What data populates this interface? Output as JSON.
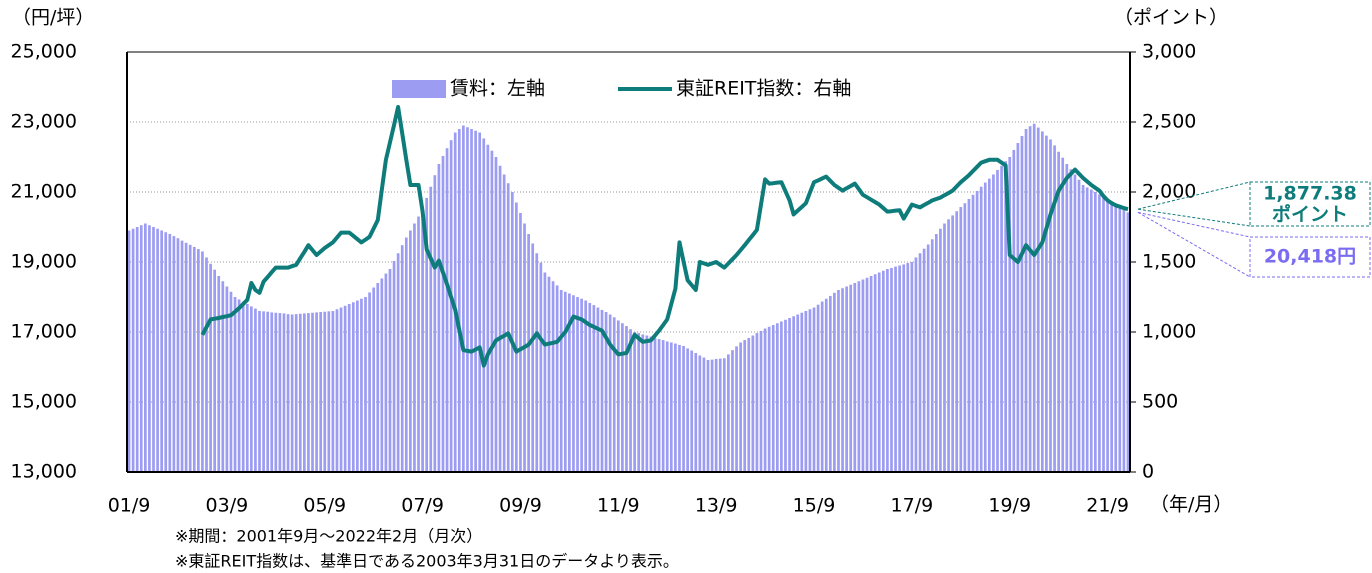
{
  "chart_data": {
    "type": "bar_line",
    "y_label": "（円/坪）",
    "y2_label": "（ポイント）",
    "x_label": "（年/月）",
    "notes": [
      "※期間：2001年9月～2022年2月（月次）",
      "※東証REIT指数は、基準日である2003年3月31日のデータより表示。"
    ],
    "ylim": [
      13000,
      25000
    ],
    "yticks": [
      {
        "value": 13000,
        "label": "13,000"
      },
      {
        "value": 15000,
        "label": "15,000"
      },
      {
        "value": 17000,
        "label": "17,000"
      },
      {
        "value": 19000,
        "label": "19,000"
      },
      {
        "value": 21000,
        "label": "21,000"
      },
      {
        "value": 23000,
        "label": "23,000"
      },
      {
        "value": 25000,
        "label": "25,000"
      }
    ],
    "y2lim": [
      0,
      3000
    ],
    "y2ticks": [
      0,
      500,
      {
        "value": 1000,
        "label": "1,000"
      },
      {
        "value": 1500,
        "label": "1,500"
      },
      {
        "value": 2000,
        "label": "2,000"
      },
      {
        "value": 2500,
        "label": "2,500"
      },
      {
        "value": 3000,
        "label": "3,000"
      }
    ],
    "grid": true,
    "legend": "top",
    "categories": [
      "01/9",
      null,
      null,
      null,
      null,
      null,
      null,
      null,
      null,
      null,
      null,
      null,
      null,
      null,
      null,
      null,
      null,
      null,
      null,
      null,
      null,
      null,
      null,
      null,
      "03/9",
      null,
      null,
      null,
      null,
      null,
      null,
      null,
      null,
      null,
      null,
      null,
      null,
      null,
      null,
      null,
      null,
      null,
      null,
      null,
      null,
      null,
      null,
      null,
      "05/9",
      null,
      null,
      null,
      null,
      null,
      null,
      null,
      null,
      null,
      null,
      null,
      null,
      null,
      null,
      null,
      null,
      null,
      null,
      null,
      null,
      null,
      null,
      null,
      "07/9",
      null,
      null,
      null,
      null,
      null,
      null,
      null,
      null,
      null,
      null,
      null,
      null,
      null,
      null,
      null,
      null,
      null,
      null,
      null,
      null,
      null,
      null,
      null,
      "09/9",
      null,
      null,
      null,
      null,
      null,
      null,
      null,
      null,
      null,
      null,
      null,
      null,
      null,
      null,
      null,
      null,
      null,
      null,
      null,
      null,
      null,
      null,
      null,
      "11/9",
      null,
      null,
      null,
      null,
      null,
      null,
      null,
      null,
      null,
      null,
      null,
      null,
      null,
      null,
      null,
      null,
      null,
      null,
      null,
      null,
      null,
      null,
      null,
      "13/9",
      null,
      null,
      null,
      null,
      null,
      null,
      null,
      null,
      null,
      null,
      null,
      null,
      null,
      null,
      null,
      null,
      null,
      null,
      null,
      null,
      null,
      null,
      null,
      "15/9",
      null,
      null,
      null,
      null,
      null,
      null,
      null,
      null,
      null,
      null,
      null,
      null,
      null,
      null,
      null,
      null,
      null,
      null,
      null,
      null,
      null,
      null,
      null,
      "17/9",
      null,
      null,
      null,
      null,
      null,
      null,
      null,
      null,
      null,
      null,
      null,
      null,
      null,
      null,
      null,
      null,
      null,
      null,
      null,
      null,
      null,
      null,
      null,
      "19/9",
      null,
      null,
      null,
      null,
      null,
      null,
      null,
      null,
      null,
      null,
      null,
      null,
      null,
      null,
      null,
      null,
      null,
      null,
      null,
      null,
      null,
      null,
      null,
      "21/9",
      null,
      null,
      null,
      null,
      null
    ],
    "series": [
      {
        "name": "賃料：左軸",
        "type": "bar",
        "color": "#9c9cf2",
        "values": [
          19900,
          19950,
          20000,
          20050,
          20100,
          20050,
          20000,
          19950,
          19900,
          19850,
          19800,
          19740,
          19680,
          19610,
          19550,
          19490,
          19430,
          19370,
          19300,
          19130,
          18950,
          18780,
          18600,
          18450,
          18300,
          18150,
          18000,
          17930,
          17870,
          17800,
          17730,
          17670,
          17600,
          17590,
          17580,
          17560,
          17550,
          17540,
          17530,
          17510,
          17500,
          17510,
          17520,
          17530,
          17540,
          17550,
          17560,
          17570,
          17580,
          17590,
          17600,
          17650,
          17700,
          17750,
          17800,
          17850,
          17900,
          17950,
          18000,
          18130,
          18270,
          18400,
          18530,
          18670,
          18800,
          19030,
          19250,
          19480,
          19700,
          19900,
          20100,
          20300,
          20500,
          20830,
          21150,
          21480,
          21800,
          22030,
          22250,
          22480,
          22700,
          22800,
          22900,
          22850,
          22800,
          22750,
          22700,
          22530,
          22350,
          22180,
          22000,
          21750,
          21500,
          21250,
          21000,
          20700,
          20400,
          20100,
          19800,
          19530,
          19250,
          18980,
          18700,
          18580,
          18450,
          18330,
          18200,
          18150,
          18100,
          18050,
          18000,
          17950,
          17900,
          17830,
          17770,
          17700,
          17630,
          17570,
          17500,
          17420,
          17330,
          17250,
          17170,
          17080,
          17000,
          16970,
          16930,
          16900,
          16870,
          16830,
          16800,
          16770,
          16730,
          16700,
          16670,
          16630,
          16600,
          16530,
          16470,
          16400,
          16330,
          16270,
          16200,
          16210,
          16230,
          16240,
          16250,
          16360,
          16480,
          16590,
          16700,
          16770,
          16830,
          16900,
          16970,
          17030,
          17100,
          17150,
          17200,
          17250,
          17300,
          17350,
          17400,
          17450,
          17500,
          17550,
          17600,
          17650,
          17700,
          17780,
          17870,
          17950,
          18030,
          18120,
          18200,
          18250,
          18300,
          18350,
          18400,
          18450,
          18500,
          18550,
          18600,
          18650,
          18700,
          18750,
          18800,
          18830,
          18870,
          18900,
          18930,
          18970,
          19000,
          19130,
          19250,
          19380,
          19500,
          19650,
          19800,
          19950,
          20100,
          20220,
          20330,
          20450,
          20570,
          20680,
          20800,
          20920,
          21030,
          21150,
          21270,
          21380,
          21500,
          21630,
          21750,
          21880,
          22000,
          22200,
          22400,
          22600,
          22800,
          22880,
          22950,
          22840,
          22730,
          22610,
          22500,
          22330,
          22150,
          21980,
          21800,
          21650,
          21500,
          21350,
          21200,
          21130,
          21070,
          21000,
          20930,
          20870,
          20800,
          20720,
          20640,
          20570,
          20490,
          20418
        ]
      },
      {
        "name": "東証REIT指数：右軸",
        "type": "line",
        "axis": "y2",
        "color": "#0e7c7b",
        "values": [
          null,
          null,
          null,
          null,
          null,
          null,
          null,
          null,
          null,
          null,
          null,
          null,
          null,
          null,
          null,
          null,
          null,
          null,
          980,
          1035,
          1090,
          1095,
          1100,
          1107,
          1113,
          1120,
          1145,
          1170,
          1200,
          1230,
          1350,
          1300,
          1280,
          1360,
          1393,
          1427,
          1460,
          1460,
          1460,
          1460,
          1470,
          1480,
          1527,
          1573,
          1620,
          1585,
          1550,
          1575,
          1600,
          1620,
          1640,
          1675,
          1710,
          1710,
          1710,
          1687,
          1663,
          1640,
          1660,
          1680,
          1740,
          1800,
          2015,
          2230,
          2355,
          2480,
          2607,
          2420,
          2230,
          2050,
          2050,
          2050,
          1860,
          1590,
          1525,
          1460,
          1510,
          1425,
          1340,
          1250,
          1160,
          1015,
          870,
          865,
          860,
          875,
          890,
          760,
          840,
          890,
          940,
          957,
          973,
          990,
          925,
          860,
          877,
          893,
          910,
          950,
          990,
          950,
          910,
          917,
          923,
          930,
          965,
          1000,
          1055,
          1110,
          1100,
          1090,
          1070,
          1050,
          1037,
          1023,
          1010,
          960,
          910,
          875,
          840,
          845,
          850,
          915,
          980,
          955,
          930,
          935,
          940,
          975,
          1010,
          1050,
          1090,
          1200,
          1310,
          1640,
          1505,
          1370,
          1335,
          1300,
          1500,
          1490,
          1480,
          1490,
          1500,
          1480,
          1460,
          1490,
          1520,
          1550,
          1585,
          1620,
          1657,
          1693,
          1730,
          1910,
          2090,
          2060,
          2063,
          2067,
          2070,
          2005,
          1940,
          1840,
          1867,
          1893,
          1920,
          1995,
          2070,
          2083,
          2097,
          2110,
          2080,
          2050,
          2030,
          2010,
          2027,
          2043,
          2060,
          2020,
          1980,
          1963,
          1945,
          1928,
          1910,
          1885,
          1860,
          1863,
          1867,
          1870,
          1810,
          1860,
          1910,
          1900,
          1890,
          1907,
          1923,
          1940,
          1950,
          1960,
          1977,
          1993,
          2010,
          2040,
          2070,
          2095,
          2120,
          2150,
          2180,
          2210,
          2220,
          2230,
          2230,
          2230,
          2210,
          2190,
          1550,
          1525,
          1500,
          1560,
          1620,
          1585,
          1550,
          1595,
          1640,
          1740,
          1840,
          1925,
          2010,
          2055,
          2100,
          2130,
          2160,
          2130,
          2100,
          2075,
          2050,
          2030,
          2010,
          1970,
          1940,
          1920,
          1905,
          1895,
          1885,
          1877.38
        ]
      }
    ],
    "annotations": [
      {
        "lines": [
          "1,877.38",
          "ポイント"
        ],
        "series": 1,
        "color": "#0e7c7b"
      },
      {
        "lines": [
          "20,418円"
        ],
        "series": 0,
        "color": "#7a6cf0"
      }
    ]
  }
}
